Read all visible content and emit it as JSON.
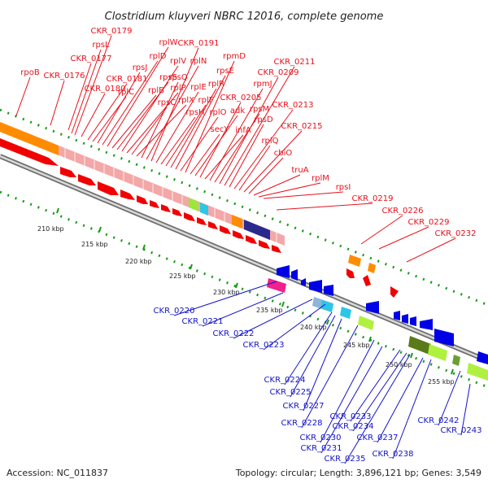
{
  "title": "Clostridium kluyveri NBRC 12016, complete genome",
  "footer": {
    "accession": "Accession: NC_011837",
    "summary": "Topology: circular; Length: 3,896,121 bp; Genes: 3,549"
  },
  "colors": {
    "forward_label": "#e8101a",
    "reverse_label": "#1313c8",
    "forward_cds": "#f00000",
    "reverse_cds": "#0000e6",
    "tick": "#1a9a1a",
    "backbone": "#9a9a9a"
  },
  "scale_ticks": [
    {
      "label": "210 kbp"
    },
    {
      "label": "215 kbp"
    },
    {
      "label": "220 kbp"
    },
    {
      "label": "225 kbp"
    },
    {
      "label": "230 kbp"
    },
    {
      "label": "235 kbp"
    },
    {
      "label": "240 kbp"
    },
    {
      "label": "245 kbp"
    },
    {
      "label": "250 kbp"
    },
    {
      "label": "255 kbp"
    }
  ],
  "forward_labels": [
    {
      "text": "rpoB"
    },
    {
      "text": "CKR_0176"
    },
    {
      "text": "CKR_0177"
    },
    {
      "text": "rpsL"
    },
    {
      "text": "CKR_0179"
    },
    {
      "text": "CKR_0180"
    },
    {
      "text": "CKR_0181"
    },
    {
      "text": "rplC"
    },
    {
      "text": "rpsJ"
    },
    {
      "text": "rplD"
    },
    {
      "text": "rplW"
    },
    {
      "text": "rplB"
    },
    {
      "text": "rpsS"
    },
    {
      "text": "rplV"
    },
    {
      "text": "rplP"
    },
    {
      "text": "rpsC"
    },
    {
      "text": "rplX"
    },
    {
      "text": "rpsQ"
    },
    {
      "text": "rplN"
    },
    {
      "text": "CKR_0191"
    },
    {
      "text": "rplE"
    },
    {
      "text": "rpsH"
    },
    {
      "text": "rplF"
    },
    {
      "text": "rplR"
    },
    {
      "text": "rpsE"
    },
    {
      "text": "rplO"
    },
    {
      "text": "rpmD"
    },
    {
      "text": "secY"
    },
    {
      "text": "adk"
    },
    {
      "text": "CKR_0205"
    },
    {
      "text": "infA"
    },
    {
      "text": "rpmJ"
    },
    {
      "text": "rpsM"
    },
    {
      "text": "CKR_0209"
    },
    {
      "text": "CKR_0211"
    },
    {
      "text": "rpsD"
    },
    {
      "text": "CKR_0213"
    },
    {
      "text": "rplQ"
    },
    {
      "text": "CKR_0215"
    },
    {
      "text": "cbiO"
    },
    {
      "text": "truA"
    },
    {
      "text": "rplM"
    },
    {
      "text": "rpsI"
    },
    {
      "text": "CKR_0219"
    },
    {
      "text": "CKR_0226"
    },
    {
      "text": "CKR_0229"
    },
    {
      "text": "CKR_0232"
    }
  ],
  "reverse_labels": [
    {
      "text": "CKR_0220"
    },
    {
      "text": "CKR_0221"
    },
    {
      "text": "CKR_0222"
    },
    {
      "text": "CKR_0223"
    },
    {
      "text": "CKR_0224"
    },
    {
      "text": "CKR_0225"
    },
    {
      "text": "CKR_0227"
    },
    {
      "text": "CKR_0228"
    },
    {
      "text": "CKR_0230"
    },
    {
      "text": "CKR_0231"
    },
    {
      "text": "CKR_0233"
    },
    {
      "text": "CKR_0234"
    },
    {
      "text": "CKR_0235"
    },
    {
      "text": "CKR_0237"
    },
    {
      "text": "CKR_0238"
    },
    {
      "text": "CKR_0242"
    },
    {
      "text": "CKR_0243"
    }
  ]
}
